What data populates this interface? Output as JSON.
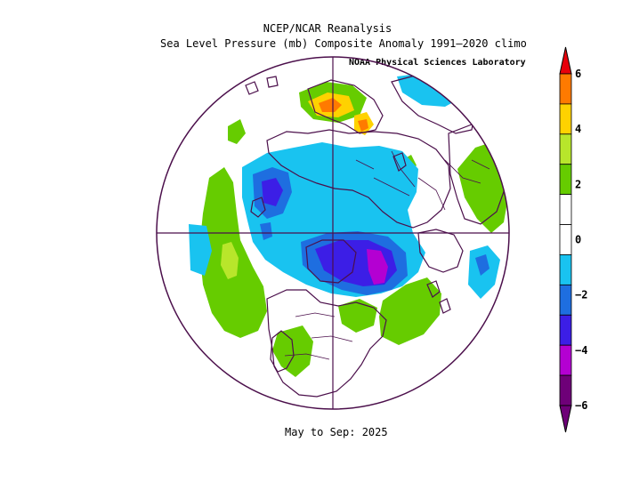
{
  "title": "NCEP/NCAR Reanalysis",
  "subtitle": "Sea Level Pressure (mb) Composite Anomaly 1991–2020 climo",
  "credit": "NOAA Physical Sciences Laboratory",
  "period": "May to Sep: 2025",
  "colorbar": {
    "ticks": [
      "6",
      "4",
      "2",
      "0",
      "−2",
      "−4",
      "−6"
    ],
    "colors": [
      "#e8000b",
      "#ff7a00",
      "#ffd200",
      "#b8e62b",
      "#66cc00",
      "#ffffff",
      "#ffffff",
      "#19c3f0",
      "#1e6ee0",
      "#3c1ee6",
      "#b400d2",
      "#6e0078"
    ]
  },
  "colors": {
    "coast": "#4b0f4b",
    "green": "#66cc00",
    "lightgreen": "#b8e62b",
    "cyan": "#19c3f0",
    "blue": "#1e6ee0",
    "darkblue": "#3c1ee6",
    "magenta": "#b400d2",
    "yellow": "#ffd200",
    "orange": "#ff7a00",
    "red": "#e8000b"
  }
}
